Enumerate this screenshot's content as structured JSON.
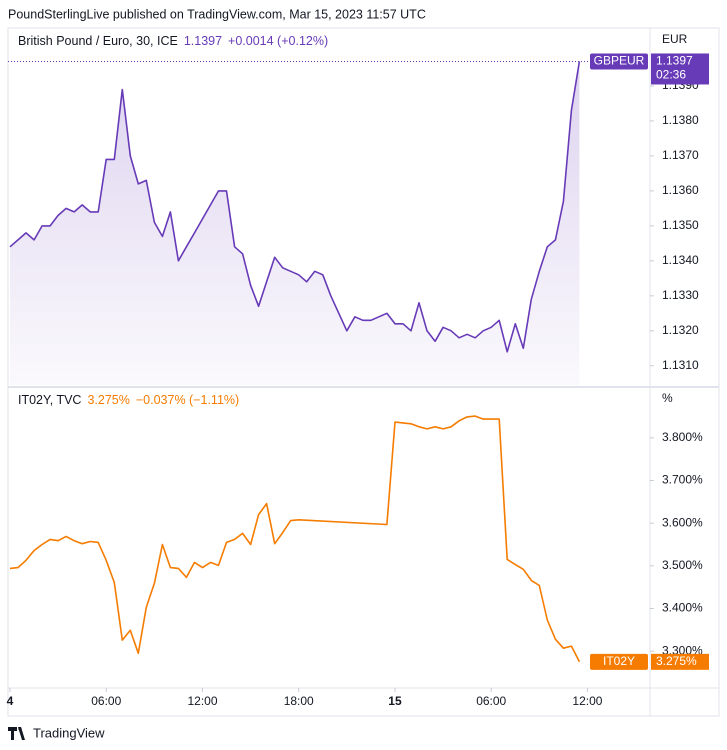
{
  "header": "PoundSterlingLive published on TradingView.com, Mar 15, 2023 11:57 UTC",
  "footer": "TradingView",
  "chart_data": [
    {
      "type": "area",
      "title": "British Pound / Euro, 30, ICE",
      "symbol": "GBPEUR",
      "change": "+0.0014 (+0.12%)",
      "countdown": "02:36",
      "unit": "EUR",
      "x": [
        0,
        0.5,
        1,
        1.5,
        2,
        2.5,
        3,
        3.5,
        4,
        4.5,
        5,
        5.5,
        6,
        6.5,
        7,
        7.5,
        8,
        8.5,
        9,
        9.5,
        10,
        10.5,
        11,
        11.5,
        12,
        12.5,
        13,
        13.5,
        14,
        14.5,
        15,
        15.5,
        16,
        16.5,
        17,
        17.5,
        18,
        18.5,
        19,
        19.5,
        20,
        20.5,
        21,
        21.5,
        22,
        22.5,
        23,
        23.5,
        24,
        24.5,
        25,
        25.5,
        26,
        26.5,
        27,
        27.5,
        28,
        28.5,
        29,
        29.5,
        30,
        30.5,
        31,
        31.5,
        32,
        32.5,
        33,
        33.5,
        34,
        34.5,
        35,
        35.5
      ],
      "series": [
        {
          "name": "British Pound / Euro, 30, ICE",
          "color": "#673ab7",
          "values": [
            1.1344,
            1.1346,
            1.1348,
            1.1346,
            1.135,
            1.135,
            1.1353,
            1.1355,
            1.1354,
            1.1356,
            1.1354,
            1.1354,
            1.1369,
            1.1369,
            1.1389,
            1.137,
            1.1362,
            1.1363,
            1.1351,
            1.1347,
            1.1354,
            1.134,
            1.1344,
            1.1348,
            1.1352,
            1.1356,
            1.136,
            1.136,
            1.1344,
            1.1342,
            1.1333,
            1.1327,
            1.1334,
            1.1341,
            1.1338,
            1.1337,
            1.1336,
            1.1334,
            1.1337,
            1.1336,
            1.133,
            1.1325,
            1.132,
            1.1324,
            1.1323,
            1.1323,
            1.1324,
            1.1325,
            1.1322,
            1.1322,
            1.132,
            1.1328,
            1.132,
            1.1317,
            1.1321,
            1.132,
            1.1318,
            1.1319,
            1.1318,
            1.132,
            1.1321,
            1.1323,
            1.1314,
            1.1322,
            1.1315,
            1.1329,
            1.1337,
            1.1344,
            1.1346,
            1.1357,
            1.1383,
            1.1397
          ]
        }
      ],
      "xlim": [
        -0.125,
        39.9
      ],
      "ylim": [
        1.13045,
        1.1406
      ],
      "yticks": [
        {
          "value": 1.131,
          "label": "1.1310"
        },
        {
          "value": 1.132,
          "label": "1.1320"
        },
        {
          "value": 1.133,
          "label": "1.1330"
        },
        {
          "value": 1.134,
          "label": "1.1340"
        },
        {
          "value": 1.135,
          "label": "1.1350"
        },
        {
          "value": 1.136,
          "label": "1.1360"
        },
        {
          "value": 1.137,
          "label": "1.1370"
        },
        {
          "value": 1.138,
          "label": "1.1380"
        },
        {
          "value": 1.139,
          "label": "1.1390"
        }
      ]
    },
    {
      "type": "line",
      "title": "IT02Y, TVC",
      "symbol": "IT02Y",
      "last_label": "3.275%",
      "change": "−0.037% (−1.11%)",
      "unit": "%",
      "x": [
        0,
        0.5,
        1,
        1.5,
        2,
        2.5,
        3,
        3.5,
        4,
        4.5,
        5,
        5.5,
        6,
        6.5,
        7,
        7.5,
        8,
        8.5,
        9,
        9.5,
        10,
        10.5,
        11,
        11.5,
        12,
        12.5,
        13,
        13.5,
        14,
        14.5,
        15,
        15.5,
        16,
        16.5,
        17,
        17.5,
        18,
        23.5,
        24,
        25,
        25.5,
        26,
        26.5,
        27,
        27.5,
        28,
        28.5,
        29,
        29.5,
        30.5,
        31,
        31.5,
        32,
        32.5,
        33,
        33.5,
        34,
        34.5,
        35,
        35.5
      ],
      "series": [
        {
          "name": "IT02Y, TVC",
          "color": "#f57c00",
          "values": [
            3.494,
            3.496,
            3.513,
            3.536,
            3.55,
            3.562,
            3.559,
            3.569,
            3.559,
            3.552,
            3.557,
            3.555,
            3.513,
            3.461,
            3.326,
            3.349,
            3.295,
            3.403,
            3.459,
            3.55,
            3.496,
            3.494,
            3.473,
            3.508,
            3.496,
            3.508,
            3.501,
            3.555,
            3.562,
            3.576,
            3.55,
            3.62,
            3.646,
            3.552,
            3.578,
            3.606,
            3.608,
            3.597,
            3.837,
            3.833,
            3.826,
            3.821,
            3.826,
            3.821,
            3.826,
            3.84,
            3.849,
            3.851,
            3.844,
            3.844,
            3.515,
            3.503,
            3.492,
            3.466,
            3.454,
            3.373,
            3.328,
            3.307,
            3.312,
            3.275
          ]
        }
      ],
      "xlim": [
        -0.125,
        39.9
      ],
      "ylim": [
        3.2137,
        3.9145
      ],
      "yticks": [
        {
          "value": 3.3,
          "label": "3.300%"
        },
        {
          "value": 3.4,
          "label": "3.400%"
        },
        {
          "value": 3.5,
          "label": "3.500%"
        },
        {
          "value": 3.6,
          "label": "3.600%"
        },
        {
          "value": 3.7,
          "label": "3.700%"
        },
        {
          "value": 3.8,
          "label": "3.800%"
        }
      ],
      "xticks": [
        {
          "value": 0,
          "label": "4"
        },
        {
          "value": 6,
          "label": "06:00"
        },
        {
          "value": 12,
          "label": "12:00"
        },
        {
          "value": 18,
          "label": "18:00"
        },
        {
          "value": 24,
          "label": "15"
        },
        {
          "value": 30,
          "label": "06:00"
        },
        {
          "value": 36,
          "label": "12:00"
        }
      ]
    }
  ]
}
